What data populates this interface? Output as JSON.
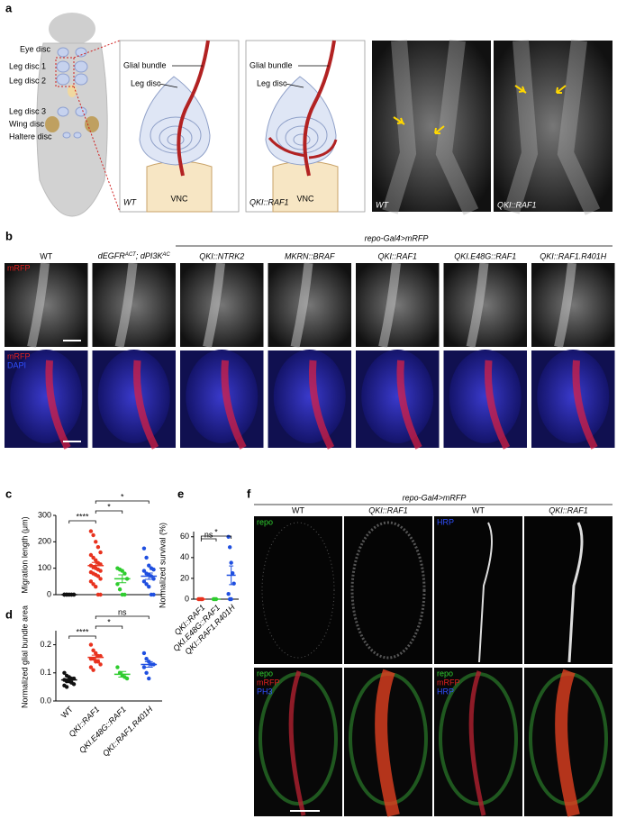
{
  "panel_a": {
    "label": "a",
    "fly_labels": [
      "Eye disc",
      "Leg disc 1",
      "Leg disc 2",
      "Leg disc 3",
      "Wing disc",
      "Haltere disc"
    ],
    "schematics": [
      {
        "glial": "Glial bundle",
        "leg": "Leg disc",
        "vnc": "VNC",
        "genotype": "WT"
      },
      {
        "glial": "Glial bundle",
        "leg": "Leg disc",
        "vnc": "VNC",
        "genotype": "QKI::RAF1"
      }
    ],
    "micrographs": [
      "WT",
      "QKI::RAF1"
    ]
  },
  "panel_b": {
    "label": "b",
    "driver": "repo-Gal4>mRFP",
    "genotypes": [
      "WT",
      [
        {
          "t": "dEGFR",
          "sup": false
        },
        {
          "t": "ACT",
          "sup": true
        },
        {
          "t": "; dPI3K",
          "sup": false
        },
        {
          "t": "AC",
          "sup": true
        }
      ],
      "QKI::NTRK2",
      "MKRN::BRAF",
      "QKI::RAF1",
      "QKI.E48G::RAF1",
      "QKI::RAF1.R401H"
    ],
    "row1_stains": [
      {
        "text": "mRFP",
        "color": "#e02020"
      }
    ],
    "row2_stains": [
      {
        "text": "mRFP",
        "color": "#e02020"
      },
      {
        "text": "DAPI",
        "color": "#3050ff"
      }
    ]
  },
  "chart_data": [
    {
      "type": "scatter",
      "label": "c",
      "ylabel": "Migration length (μm)",
      "categories": [
        null,
        null,
        null,
        null
      ],
      "ylim": [
        0,
        300
      ],
      "yticks": [
        0,
        100,
        200,
        300
      ],
      "series": [
        {
          "color": "#111111",
          "points": [
            0,
            0,
            0,
            0,
            0,
            0,
            0,
            0,
            0,
            0,
            0,
            0
          ],
          "mean": 0,
          "sem": 0
        },
        {
          "color": "#e8321e",
          "points": [
            240,
            225,
            200,
            180,
            160,
            150,
            140,
            130,
            120,
            115,
            110,
            105,
            100,
            95,
            90,
            85,
            80,
            75,
            70,
            60,
            50,
            40,
            30,
            0,
            0
          ],
          "mean": 110,
          "sem": 12
        },
        {
          "color": "#2ecc2e",
          "points": [
            100,
            95,
            90,
            80,
            60,
            40,
            20,
            0,
            0
          ],
          "mean": 60,
          "sem": 15
        },
        {
          "color": "#1f4fe0",
          "points": [
            175,
            140,
            110,
            100,
            95,
            90,
            80,
            75,
            70,
            60,
            50,
            40,
            30,
            0,
            0
          ],
          "mean": 70,
          "sem": 12
        }
      ],
      "significance": [
        {
          "label": "****",
          "from": 0,
          "to": 1
        },
        {
          "label": "*",
          "from": 1,
          "to": 2
        },
        {
          "label": "*",
          "from": 1,
          "to": 3
        }
      ]
    },
    {
      "type": "scatter",
      "label": "d",
      "ylabel": "Normalized glial bundle area",
      "categories": [
        "WT",
        "QKI::RAF1",
        "QKI.E48G::RAF1",
        "QKI::RAF1.R401H"
      ],
      "ylim": [
        0,
        0.25
      ],
      "yticks": [
        {
          "value": 0,
          "label": "0.0"
        },
        0.1,
        0.2
      ],
      "series": [
        {
          "color": "#111111",
          "points": [
            0.1,
            0.09,
            0.085,
            0.08,
            0.08,
            0.075,
            0.07,
            0.07,
            0.065,
            0.06,
            0.055,
            0.05
          ],
          "mean": 0.075,
          "sem": 0.004
        },
        {
          "color": "#e8321e",
          "points": [
            0.2,
            0.18,
            0.17,
            0.16,
            0.16,
            0.15,
            0.15,
            0.14,
            0.14,
            0.13,
            0.12,
            0.11
          ],
          "mean": 0.155,
          "sem": 0.008
        },
        {
          "color": "#2ecc2e",
          "points": [
            0.12,
            0.1,
            0.09,
            0.085,
            0.08
          ],
          "mean": 0.095,
          "sem": 0.01
        },
        {
          "color": "#1f4fe0",
          "points": [
            0.17,
            0.15,
            0.14,
            0.13,
            0.13,
            0.12,
            0.1,
            0.08
          ],
          "mean": 0.13,
          "sem": 0.01
        }
      ],
      "significance": [
        {
          "label": "****",
          "from": 0,
          "to": 1
        },
        {
          "label": "*",
          "from": 1,
          "to": 2
        },
        {
          "label": "ns",
          "from": 1,
          "to": 3
        }
      ]
    },
    {
      "type": "scatter",
      "label": "e",
      "ylabel": "Normalized survival (%)",
      "categories": [
        "QKI::RAF1",
        "QKI.E48G::RAF1",
        "QKI::RAF1.R401H"
      ],
      "ylim": [
        0,
        65
      ],
      "yticks": [
        0,
        20,
        40,
        60
      ],
      "series": [
        {
          "color": "#e8321e",
          "points": [
            0,
            0,
            0,
            0
          ],
          "mean": 0,
          "sem": 0
        },
        {
          "color": "#2ecc2e",
          "points": [
            0,
            0,
            0
          ],
          "mean": 0,
          "sem": 0
        },
        {
          "color": "#1f4fe0",
          "points": [
            60,
            50,
            35,
            25,
            15,
            5,
            0,
            0
          ],
          "mean": 23,
          "sem": 9
        }
      ],
      "significance": [
        {
          "label": "ns",
          "from": 0,
          "to": 1
        },
        {
          "label": "*",
          "from": 0,
          "to": 2
        }
      ]
    }
  ],
  "panel_f": {
    "label": "f",
    "driver": "repo-Gal4>mRFP",
    "columns": [
      "WT",
      "QKI::RAF1",
      "WT",
      "QKI::RAF1"
    ],
    "row1_stains": [
      [
        {
          "text": "repo",
          "color": "#30d030"
        }
      ],
      [
        {
          "text": "HRP",
          "color": "#3050ff"
        }
      ]
    ],
    "row2_stains": [
      [
        {
          "text": "repo",
          "color": "#30d030"
        },
        {
          "text": "mRFP",
          "color": "#e02020"
        },
        {
          "text": "PH3",
          "color": "#3050ff"
        }
      ],
      [
        {
          "text": "repo",
          "color": "#30d030"
        },
        {
          "text": "mRFP",
          "color": "#e02020"
        },
        {
          "text": "HRP",
          "color": "#3050ff"
        }
      ]
    ]
  }
}
